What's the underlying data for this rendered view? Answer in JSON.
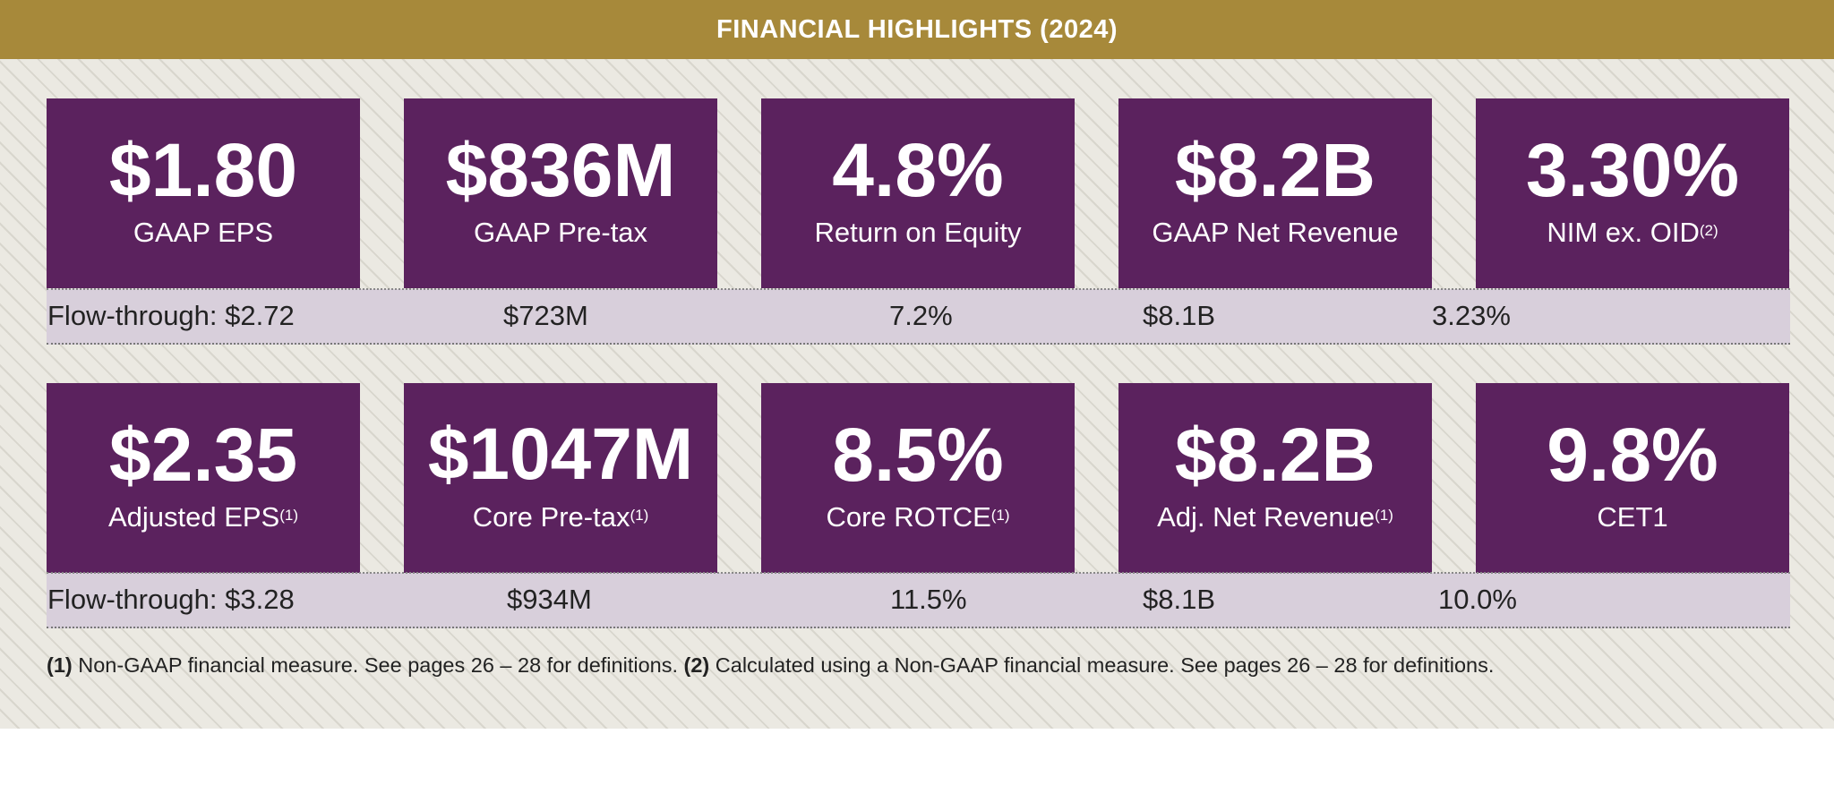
{
  "header": {
    "title": "FINANCIAL HIGHLIGHTS (2024)"
  },
  "row1": {
    "tiles": [
      {
        "value": "$1.80",
        "label": "GAAP EPS",
        "note": ""
      },
      {
        "value": "$836M",
        "label": "GAAP Pre-tax",
        "note": ""
      },
      {
        "value": "4.8%",
        "label": "Return on Equity",
        "note": ""
      },
      {
        "value": "$8.2B",
        "label": "GAAP Net Revenue",
        "note": ""
      },
      {
        "value": "3.30%",
        "label": "NIM ex. OID",
        "note": "(2)"
      }
    ],
    "flow": [
      "Flow-through: $2.72",
      "$723M",
      "7.2%",
      "$8.1B",
      "3.23%"
    ]
  },
  "row2": {
    "tiles": [
      {
        "value": "$2.35",
        "label": "Adjusted EPS",
        "note": "(1)"
      },
      {
        "value": "$1047M",
        "label": "Core Pre-tax",
        "note": "(1)"
      },
      {
        "value": "8.5%",
        "label": "Core ROTCE",
        "note": "(1)"
      },
      {
        "value": "$8.2B",
        "label": "Adj. Net Revenue",
        "note": "(1)"
      },
      {
        "value": "9.8%",
        "label": "CET1",
        "note": ""
      }
    ],
    "flow": [
      "Flow-through: $3.28",
      "$934M",
      "11.5%",
      "$8.1B",
      "10.0%"
    ]
  },
  "footnotes": {
    "n1_marker": "(1)",
    "n1_text": "Non-GAAP financial measure. See pages 26 – 28 for definitions.",
    "n2_marker": "(2)",
    "n2_text": "Calculated using a Non-GAAP financial measure. See pages 26 – 28 for definitions."
  },
  "colors": {
    "header": "#a7893a",
    "tile": "#5b225e",
    "band": "#d8cfdb",
    "panel": "#ebe9e2"
  }
}
